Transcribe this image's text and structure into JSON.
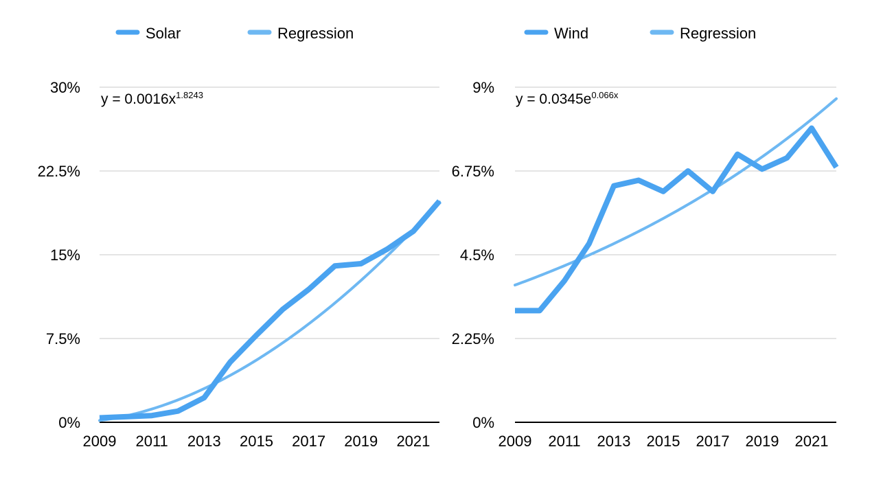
{
  "chart_data": [
    {
      "type": "line",
      "title": "",
      "xlabel": "",
      "ylabel": "",
      "x": [
        2009,
        2010,
        2011,
        2012,
        2013,
        2014,
        2015,
        2016,
        2017,
        2018,
        2019,
        2020,
        2021,
        2022
      ],
      "xlim": [
        2009,
        2022
      ],
      "ylim": [
        0,
        30
      ],
      "x_ticks": [
        "2009",
        "2011",
        "2013",
        "2015",
        "2017",
        "2019",
        "2021"
      ],
      "y_ticks": [
        "0%",
        "7.5%",
        "15%",
        "22.5%",
        "30%"
      ],
      "y_tick_values": [
        0,
        7.5,
        15,
        22.5,
        30
      ],
      "grid": true,
      "legend_position": "top",
      "equation": {
        "base": "y = 0.0016x",
        "exponent": "1.8243"
      },
      "series": [
        {
          "name": "Solar",
          "color": "#4aa3f0",
          "values": [
            0.4,
            0.5,
            0.6,
            1.0,
            2.2,
            5.4,
            7.8,
            10.1,
            11.9,
            14.0,
            14.2,
            15.5,
            17.1,
            19.8
          ]
        },
        {
          "name": "Regression",
          "color": "#6eb8f2",
          "model": "power",
          "coefficient": 0.0016,
          "exponent": 1.8243
        }
      ]
    },
    {
      "type": "line",
      "title": "",
      "xlabel": "",
      "ylabel": "",
      "x": [
        2009,
        2010,
        2011,
        2012,
        2013,
        2014,
        2015,
        2016,
        2017,
        2018,
        2019,
        2020,
        2021,
        2022
      ],
      "xlim": [
        2009,
        2022
      ],
      "ylim": [
        0,
        9
      ],
      "x_ticks": [
        "2009",
        "2011",
        "2013",
        "2015",
        "2017",
        "2019",
        "2021"
      ],
      "y_ticks": [
        "0%",
        "2.25%",
        "4.5%",
        "6.75%",
        "9%"
      ],
      "y_tick_values": [
        0,
        2.25,
        4.5,
        6.75,
        9
      ],
      "grid": true,
      "legend_position": "top",
      "equation": {
        "base": "y = 0.0345e",
        "exponent": "0.066x"
      },
      "series": [
        {
          "name": "Wind",
          "color": "#4aa3f0",
          "values": [
            3.0,
            3.0,
            3.8,
            4.8,
            6.35,
            6.5,
            6.2,
            6.75,
            6.2,
            7.2,
            6.8,
            7.1,
            7.9,
            6.85
          ]
        },
        {
          "name": "Regression",
          "color": "#6eb8f2",
          "model": "exponential",
          "coefficient": 0.0345,
          "rate": 0.066
        }
      ]
    }
  ]
}
